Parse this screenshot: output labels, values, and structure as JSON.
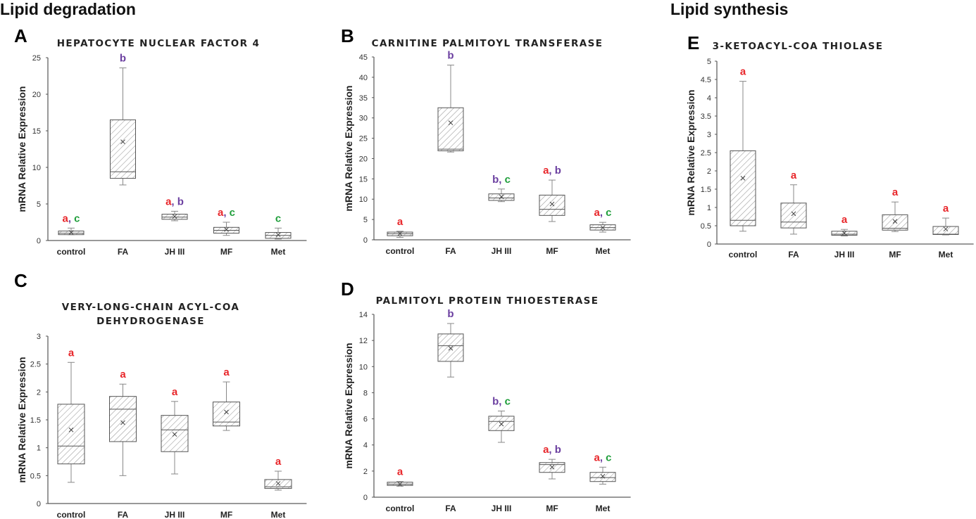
{
  "sections": {
    "left": "Lipid degradation",
    "right": "Lipid synthesis"
  },
  "colors": {
    "a": "#e8262a",
    "b": "#6b3fa0",
    "c": "#1e9e3a",
    "hatch": "#999999"
  },
  "chart_data": [
    {
      "panel": "A",
      "type": "box",
      "title_lines": [
        "HEPATOCYTE NUCLEAR FACTOR 4"
      ],
      "ylabel": "mRNA Relative Expression",
      "ylim": [
        0,
        25
      ],
      "yticks": [
        0,
        5,
        10,
        15,
        20,
        25
      ],
      "categories": [
        "control",
        "FA",
        "JH III",
        "MF",
        "Met"
      ],
      "boxes": [
        {
          "min": 0.8,
          "q1": 0.8,
          "median": 1.0,
          "q3": 1.3,
          "max": 1.7,
          "mean": 1.1
        },
        {
          "min": 7.6,
          "q1": 8.5,
          "median": 9.4,
          "q3": 16.5,
          "max": 23.6,
          "mean": 13.5
        },
        {
          "min": 2.7,
          "q1": 2.9,
          "median": 3.2,
          "q3": 3.6,
          "max": 4.0,
          "mean": 3.3
        },
        {
          "min": 0.7,
          "q1": 1.0,
          "median": 1.4,
          "q3": 1.8,
          "max": 2.5,
          "mean": 1.5
        },
        {
          "min": 0.2,
          "q1": 0.3,
          "median": 0.7,
          "q3": 1.1,
          "max": 1.7,
          "mean": 0.8
        }
      ],
      "sig": [
        [
          {
            "t": "a",
            "c": "a"
          },
          {
            "t": ", ",
            "c": "b"
          },
          {
            "t": "c",
            "c": "c"
          }
        ],
        [
          {
            "t": "b",
            "c": "b"
          }
        ],
        [
          {
            "t": "a",
            "c": "a"
          },
          {
            "t": ", ",
            "c": "b"
          },
          {
            "t": "b",
            "c": "b"
          }
        ],
        [
          {
            "t": "a",
            "c": "a"
          },
          {
            "t": ", ",
            "c": "b"
          },
          {
            "t": "c",
            "c": "c"
          }
        ],
        [
          {
            "t": "c",
            "c": "c"
          }
        ]
      ]
    },
    {
      "panel": "B",
      "type": "box",
      "title_lines": [
        "CARNITINE PALMITOYL TRANSFERASE"
      ],
      "ylabel": "mRNA Relative Expression",
      "ylim": [
        0,
        45
      ],
      "yticks": [
        0,
        5,
        10,
        15,
        20,
        25,
        30,
        35,
        40,
        45
      ],
      "categories": [
        "control",
        "FA",
        "JH III",
        "MF",
        "Met"
      ],
      "boxes": [
        {
          "min": 0.6,
          "q1": 1.0,
          "median": 1.5,
          "q3": 1.9,
          "max": 2.1,
          "mean": 1.5
        },
        {
          "min": 21.6,
          "q1": 21.9,
          "median": 22.3,
          "q3": 32.5,
          "max": 43.0,
          "mean": 28.8
        },
        {
          "min": 9.4,
          "q1": 9.7,
          "median": 10.3,
          "q3": 11.3,
          "max": 12.5,
          "mean": 10.6
        },
        {
          "min": 4.5,
          "q1": 6.0,
          "median": 7.5,
          "q3": 11.0,
          "max": 14.7,
          "mean": 8.8
        },
        {
          "min": 1.9,
          "q1": 2.4,
          "median": 3.0,
          "q3": 3.7,
          "max": 4.3,
          "mean": 3.0
        }
      ],
      "sig": [
        [
          {
            "t": "a",
            "c": "a"
          }
        ],
        [
          {
            "t": "b",
            "c": "b"
          }
        ],
        [
          {
            "t": "b",
            "c": "b"
          },
          {
            "t": ", ",
            "c": "b"
          },
          {
            "t": "c",
            "c": "c"
          }
        ],
        [
          {
            "t": "a",
            "c": "a"
          },
          {
            "t": ", ",
            "c": "b"
          },
          {
            "t": "b",
            "c": "b"
          }
        ],
        [
          {
            "t": "a",
            "c": "a"
          },
          {
            "t": ", ",
            "c": "b"
          },
          {
            "t": "c",
            "c": "c"
          }
        ]
      ]
    },
    {
      "panel": "C",
      "type": "box",
      "title_lines": [
        "VERY-LONG-CHAIN ACYL-COA",
        "DEHYDROGENASE"
      ],
      "ylabel": "mRNA Relative Expression",
      "ylim": [
        0,
        3
      ],
      "yticks": [
        0,
        0.5,
        1,
        1.5,
        2,
        2.5,
        3
      ],
      "categories": [
        "control",
        "FA",
        "JH III",
        "MF",
        "Met"
      ],
      "boxes": [
        {
          "min": 0.38,
          "q1": 0.71,
          "median": 1.03,
          "q3": 1.78,
          "max": 2.53,
          "mean": 1.32
        },
        {
          "min": 0.5,
          "q1": 1.11,
          "median": 1.69,
          "q3": 1.92,
          "max": 2.14,
          "mean": 1.45
        },
        {
          "min": 0.53,
          "q1": 0.93,
          "median": 1.32,
          "q3": 1.58,
          "max": 1.83,
          "mean": 1.24
        },
        {
          "min": 1.31,
          "q1": 1.39,
          "median": 1.46,
          "q3": 1.82,
          "max": 2.18,
          "mean": 1.64
        },
        {
          "min": 0.24,
          "q1": 0.27,
          "median": 0.3,
          "q3": 0.43,
          "max": 0.58,
          "mean": 0.36
        }
      ],
      "sig": [
        [
          {
            "t": "a",
            "c": "a"
          }
        ],
        [
          {
            "t": "a",
            "c": "a"
          }
        ],
        [
          {
            "t": "a",
            "c": "a"
          }
        ],
        [
          {
            "t": "a",
            "c": "a"
          }
        ],
        [
          {
            "t": "a",
            "c": "a"
          }
        ]
      ]
    },
    {
      "panel": "D",
      "type": "box",
      "title_lines": [
        "PALMITOYL PROTEIN THIOESTERASE"
      ],
      "ylabel": "mRNA Relative Expression",
      "ylim": [
        0,
        14
      ],
      "yticks": [
        0,
        2,
        4,
        6,
        8,
        10,
        12,
        14
      ],
      "categories": [
        "control",
        "FA",
        "JH III",
        "MF",
        "Met"
      ],
      "boxes": [
        {
          "min": 0.85,
          "q1": 0.9,
          "median": 1.0,
          "q3": 1.15,
          "max": 1.2,
          "mean": 1.0
        },
        {
          "min": 9.2,
          "q1": 10.4,
          "median": 11.6,
          "q3": 12.5,
          "max": 13.3,
          "mean": 11.4
        },
        {
          "min": 4.2,
          "q1": 5.1,
          "median": 5.8,
          "q3": 6.2,
          "max": 6.6,
          "mean": 5.6
        },
        {
          "min": 1.4,
          "q1": 1.9,
          "median": 2.5,
          "q3": 2.65,
          "max": 2.9,
          "mean": 2.3
        },
        {
          "min": 1.0,
          "q1": 1.2,
          "median": 1.5,
          "q3": 1.9,
          "max": 2.3,
          "mean": 1.6
        }
      ],
      "sig": [
        [
          {
            "t": "a",
            "c": "a"
          }
        ],
        [
          {
            "t": "b",
            "c": "b"
          }
        ],
        [
          {
            "t": "b",
            "c": "b"
          },
          {
            "t": ", ",
            "c": "b"
          },
          {
            "t": "c",
            "c": "c"
          }
        ],
        [
          {
            "t": "a",
            "c": "a"
          },
          {
            "t": ", ",
            "c": "b"
          },
          {
            "t": "b",
            "c": "b"
          }
        ],
        [
          {
            "t": "a",
            "c": "a"
          },
          {
            "t": ", ",
            "c": "b"
          },
          {
            "t": "c",
            "c": "c"
          }
        ]
      ]
    },
    {
      "panel": "E",
      "type": "box",
      "title_lines": [
        "3-KETOACYL-COA THIOLASE"
      ],
      "ylabel": "mRNA Relative Expression",
      "ylim": [
        0,
        5
      ],
      "yticks": [
        0,
        0.5,
        1,
        1.5,
        2,
        2.5,
        3,
        3.5,
        4,
        4.5,
        5
      ],
      "categories": [
        "control",
        "FA",
        "JH III",
        "MF",
        "Met"
      ],
      "boxes": [
        {
          "min": 0.35,
          "q1": 0.5,
          "median": 0.65,
          "q3": 2.55,
          "max": 4.45,
          "mean": 1.8
        },
        {
          "min": 0.27,
          "q1": 0.44,
          "median": 0.6,
          "q3": 1.12,
          "max": 1.62,
          "mean": 0.83
        },
        {
          "min": 0.22,
          "q1": 0.24,
          "median": 0.27,
          "q3": 0.35,
          "max": 0.4,
          "mean": 0.3
        },
        {
          "min": 0.34,
          "q1": 0.38,
          "median": 0.43,
          "q3": 0.8,
          "max": 1.15,
          "mean": 0.62
        },
        {
          "min": 0.25,
          "q1": 0.26,
          "median": 0.27,
          "q3": 0.48,
          "max": 0.71,
          "mean": 0.41
        }
      ],
      "sig": [
        [
          {
            "t": "a",
            "c": "a"
          }
        ],
        [
          {
            "t": "a",
            "c": "a"
          }
        ],
        [
          {
            "t": "a",
            "c": "a"
          }
        ],
        [
          {
            "t": "a",
            "c": "a"
          }
        ],
        [
          {
            "t": "a",
            "c": "a"
          }
        ]
      ]
    }
  ]
}
